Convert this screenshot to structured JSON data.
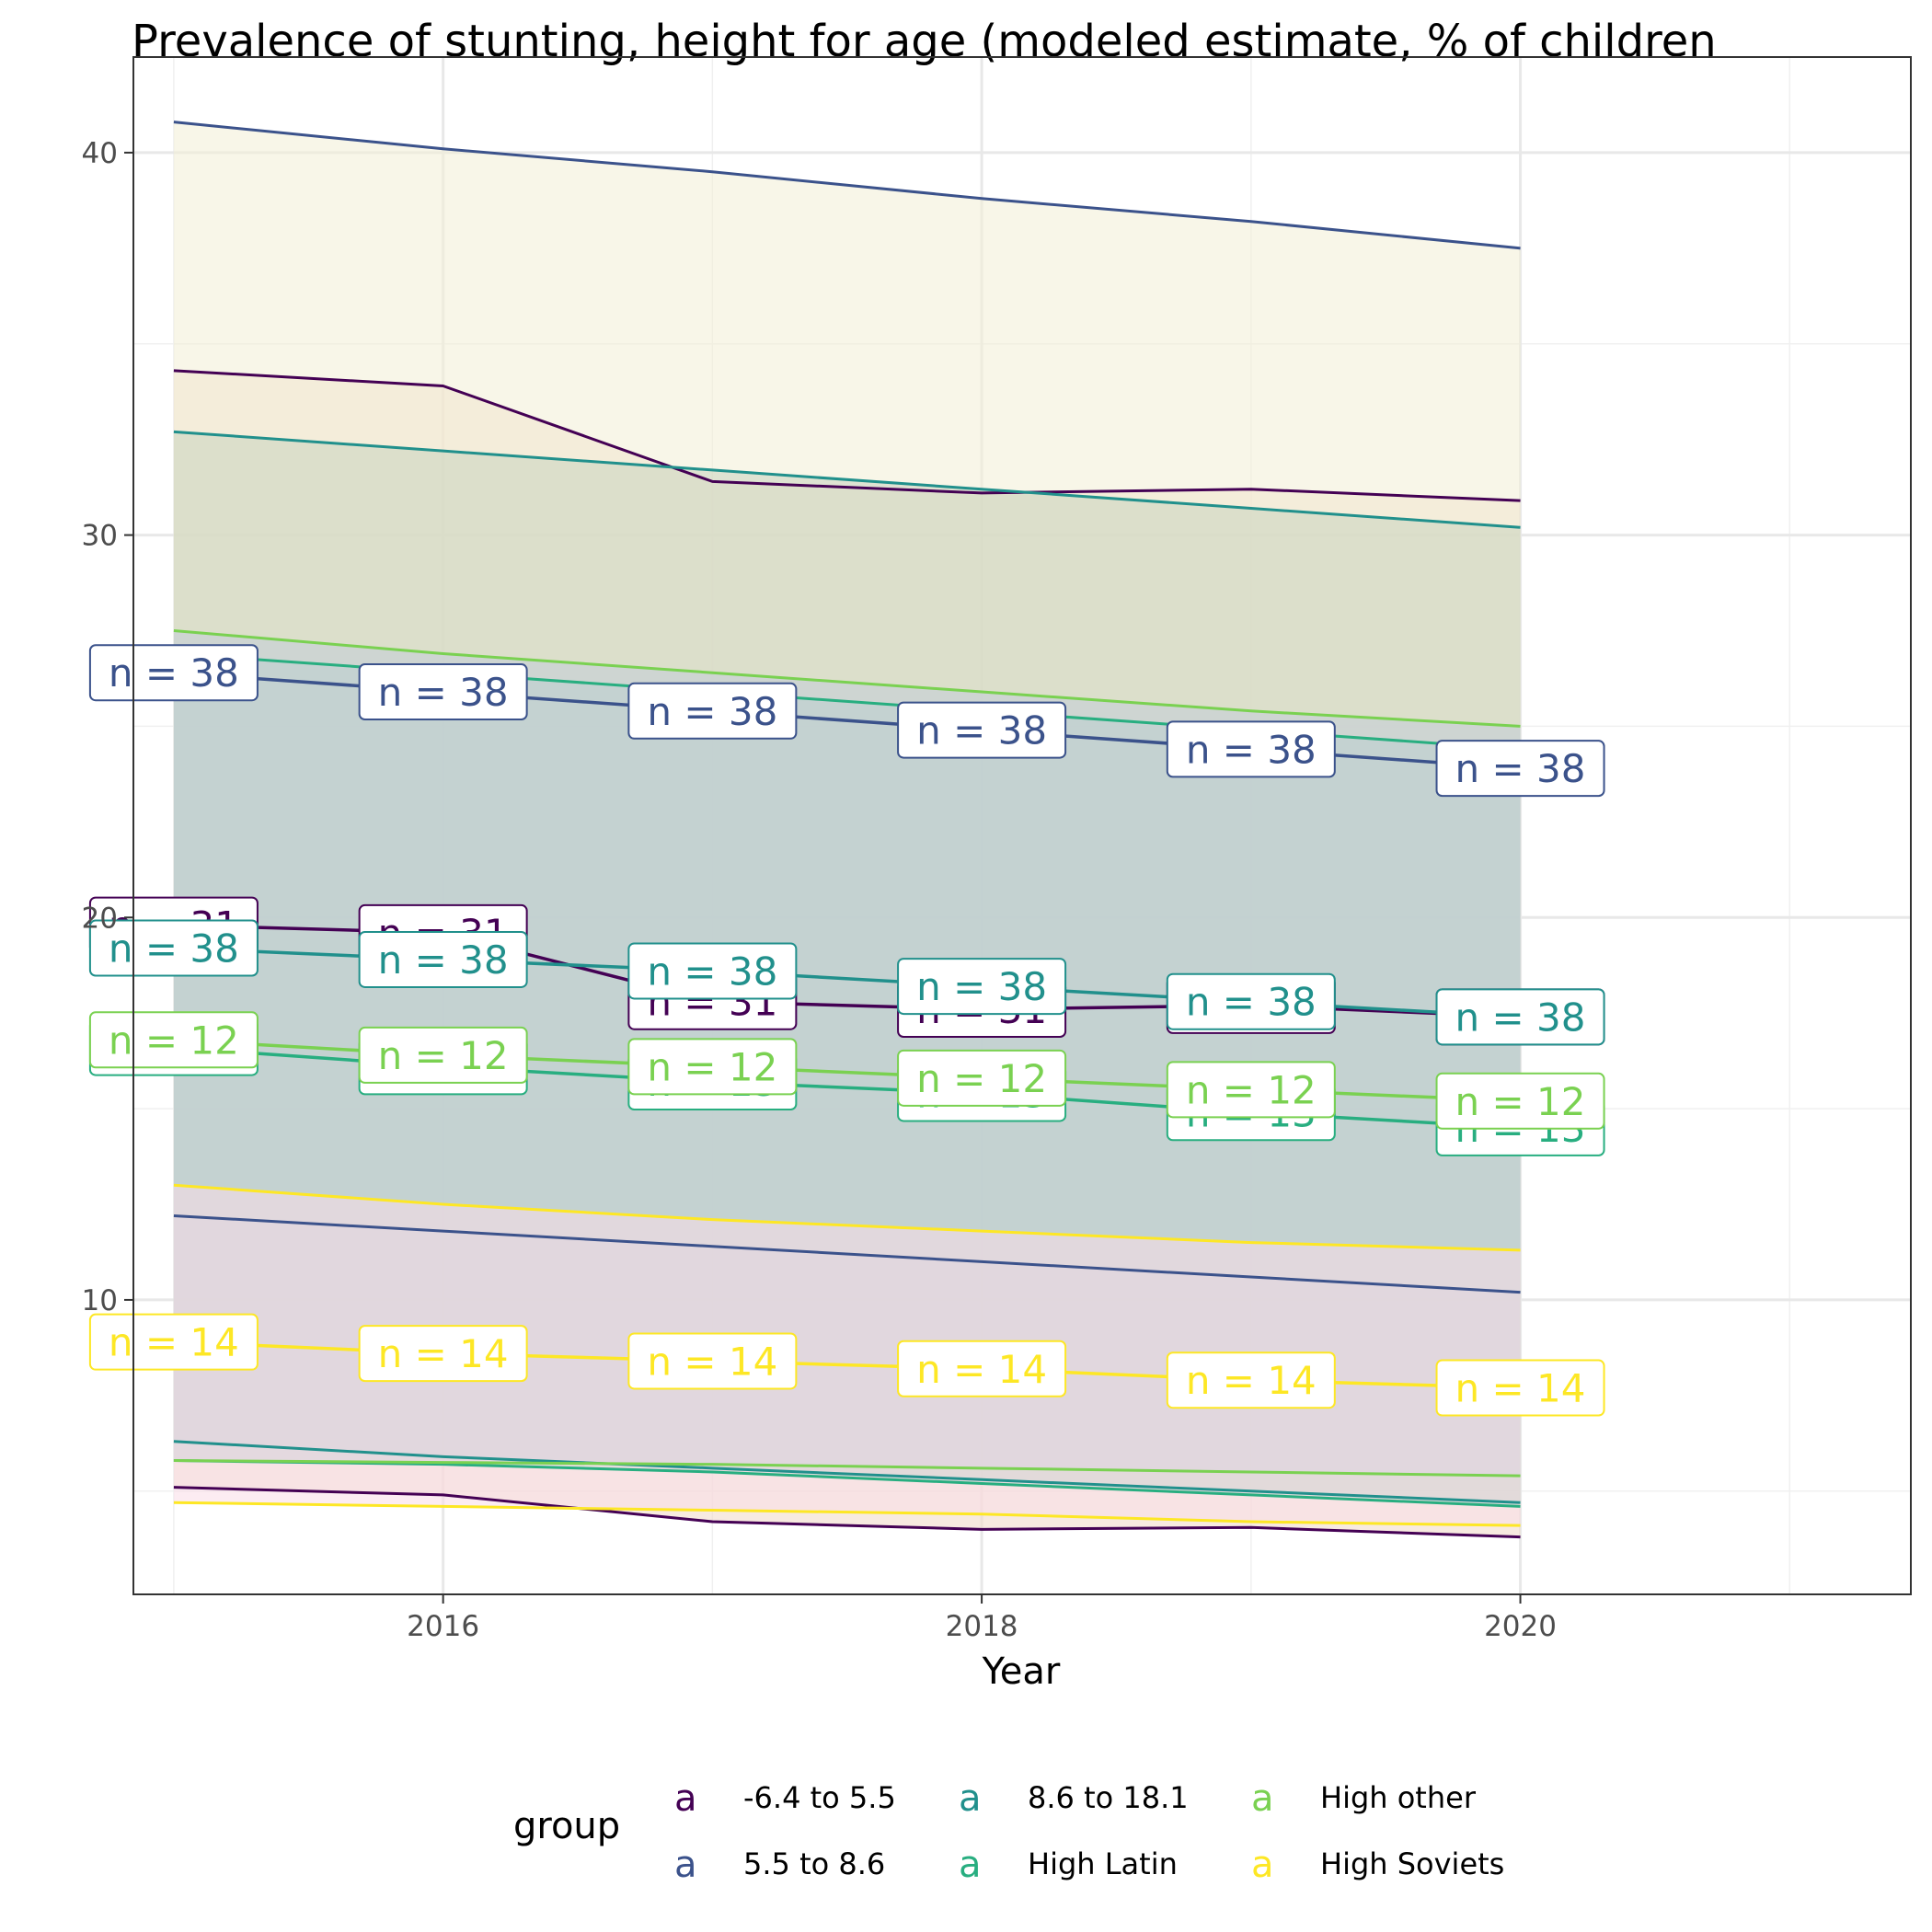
{
  "chart_data": {
    "type": "line",
    "title": "Prevalence of stunting, height for age (modeled estimate, % of children",
    "xlabel": "Year",
    "ylabel": "",
    "xlim": [
      2014.85,
      2021.45
    ],
    "ylim": [
      2.3,
      42.5
    ],
    "x_ticks": [
      2016,
      2018,
      2020
    ],
    "y_ticks": [
      10,
      20,
      30,
      40
    ],
    "grid": true,
    "legend": {
      "title": "group",
      "position": "bottom",
      "key_glyph": "a"
    },
    "x": [
      2015,
      2016,
      2017,
      2018,
      2019,
      2020
    ],
    "series": [
      {
        "name": "-6.4 to 5.5",
        "color": "#440154",
        "fill": "#f0d9c6",
        "upper": [
          34.3,
          33.9,
          31.4,
          31.1,
          31.2,
          30.9
        ],
        "values": [
          19.8,
          19.6,
          17.8,
          17.6,
          17.7,
          17.4
        ],
        "lower": [
          5.1,
          4.9,
          4.2,
          4.0,
          4.05,
          3.8
        ],
        "count_label": "n = 31"
      },
      {
        "name": "5.5 to 8.6",
        "color": "#3b528b",
        "fill": "#f3eed6",
        "upper": [
          40.8,
          40.1,
          39.5,
          38.8,
          38.2,
          37.5
        ],
        "values": [
          26.4,
          25.9,
          25.4,
          24.9,
          24.4,
          23.9
        ],
        "lower": [
          12.2,
          11.8,
          11.4,
          11.0,
          10.6,
          10.2
        ],
        "count_label": "n = 38"
      },
      {
        "name": "8.6 to 18.1",
        "color": "#21908c",
        "fill": "#c8d3c0",
        "upper": [
          32.7,
          32.2,
          31.7,
          31.2,
          30.7,
          30.2
        ],
        "values": [
          19.2,
          18.9,
          18.6,
          18.2,
          17.8,
          17.4
        ],
        "lower": [
          6.3,
          5.9,
          5.6,
          5.3,
          5.0,
          4.7
        ],
        "count_label": "n = 38"
      },
      {
        "name": "High Latin",
        "color": "#28ae80",
        "fill": "#b3d3c5",
        "upper": [
          26.9,
          26.4,
          25.9,
          25.4,
          24.9,
          24.4
        ],
        "values": [
          16.6,
          16.1,
          15.7,
          15.4,
          14.9,
          14.5
        ],
        "lower": [
          5.8,
          5.7,
          5.5,
          5.2,
          4.9,
          4.6
        ],
        "count_label": "n = 13"
      },
      {
        "name": "High other",
        "color": "#7ad151",
        "fill": "#c2ccd8",
        "upper": [
          27.5,
          26.9,
          26.4,
          25.9,
          25.4,
          25.0
        ],
        "values": [
          16.8,
          16.4,
          16.1,
          15.8,
          15.5,
          15.2
        ],
        "lower": [
          5.8,
          5.75,
          5.7,
          5.6,
          5.5,
          5.4
        ],
        "count_label": "n = 12"
      },
      {
        "name": "High Soviets",
        "color": "#fde725",
        "fill": "#fadde8",
        "upper": [
          13.0,
          12.5,
          12.1,
          11.8,
          11.5,
          11.3
        ],
        "values": [
          8.9,
          8.6,
          8.4,
          8.2,
          7.9,
          7.7
        ],
        "lower": [
          4.7,
          4.6,
          4.5,
          4.4,
          4.2,
          4.1
        ],
        "count_label": "n = 14"
      }
    ]
  }
}
